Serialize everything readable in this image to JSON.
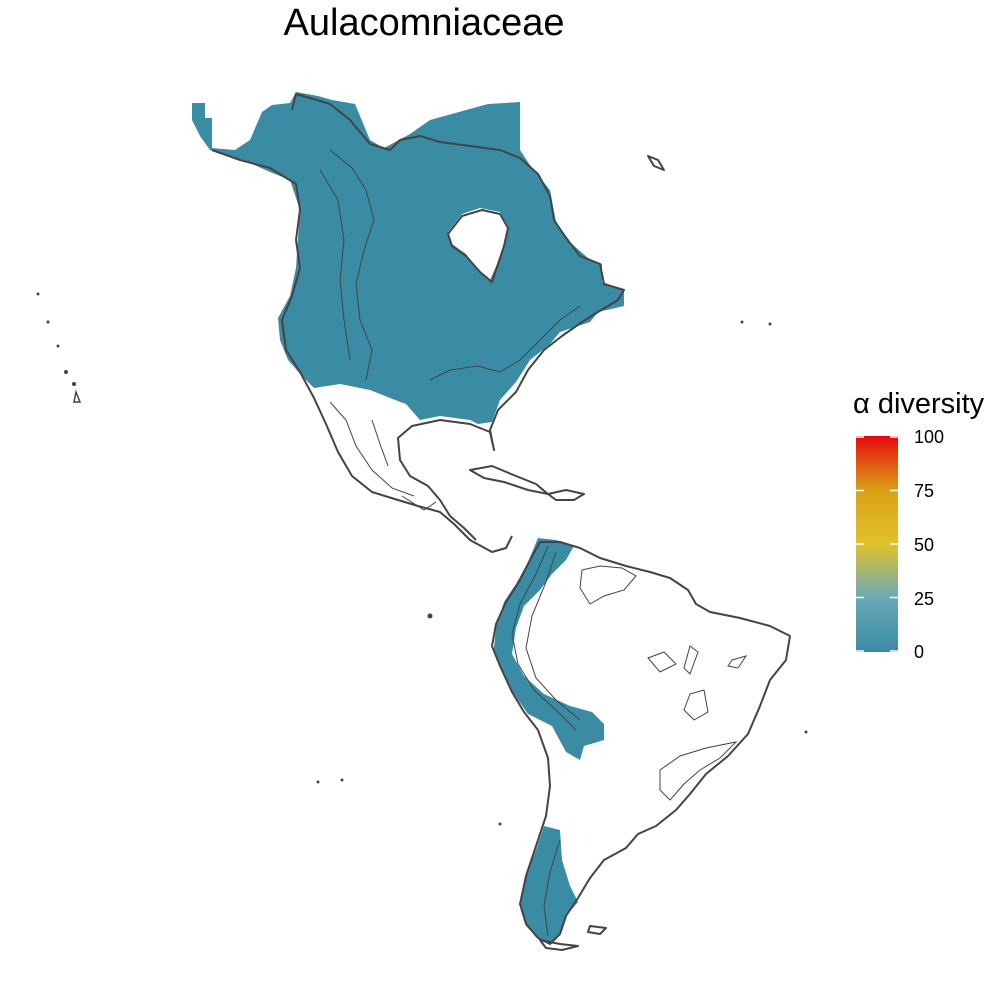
{
  "title": "Aulacomniaceae",
  "legend": {
    "title": "α diversity",
    "ticks": [
      "100",
      "75",
      "50",
      "25",
      "0"
    ],
    "tick_values": [
      100,
      75,
      50,
      25,
      0
    ],
    "colors": [
      "#3b8ba3",
      "#6aa9b8",
      "#e0c22a",
      "#dba015",
      "#e8080d"
    ]
  },
  "colors": {
    "fill": "#3a8ca4",
    "coast": "#444444"
  }
}
